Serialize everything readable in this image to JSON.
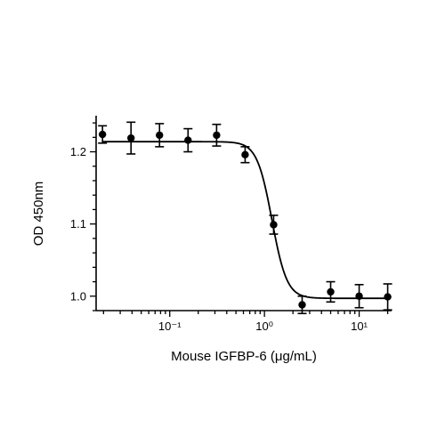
{
  "chart_data": {
    "type": "scatter",
    "title": "",
    "xlabel": "Mouse IGFBP-6 (μg/mL)",
    "ylabel": "OD 450nm",
    "x_scale": "log",
    "xlim": [
      0.0167,
      22
    ],
    "ylim": [
      0.98,
      1.25
    ],
    "x_major_ticks": [
      0.1,
      1,
      10
    ],
    "x_tick_labels": [
      "10⁻¹",
      "10⁰",
      "10¹"
    ],
    "y_ticks": [
      1.0,
      1.1,
      1.2
    ],
    "y_tick_labels": [
      "1.0",
      "1.1",
      "1.2"
    ],
    "grid": false,
    "legend": "none",
    "series": [
      {
        "x": [
          0.0195,
          0.039,
          0.078,
          0.156,
          0.3125,
          0.625,
          1.25,
          2.5,
          5,
          10,
          20
        ],
        "y": [
          1.224,
          1.219,
          1.223,
          1.216,
          1.223,
          1.196,
          1.099,
          0.988,
          1.006,
          1.0,
          0.999
        ],
        "error": [
          0.012,
          0.022,
          0.016,
          0.016,
          0.015,
          0.011,
          0.013,
          0.012,
          0.014,
          0.016,
          0.018
        ]
      }
    ],
    "fit": {
      "model": "4PL",
      "top": 1.214,
      "bottom": 0.997,
      "ec50": 1.2,
      "hill": 5.5
    }
  }
}
